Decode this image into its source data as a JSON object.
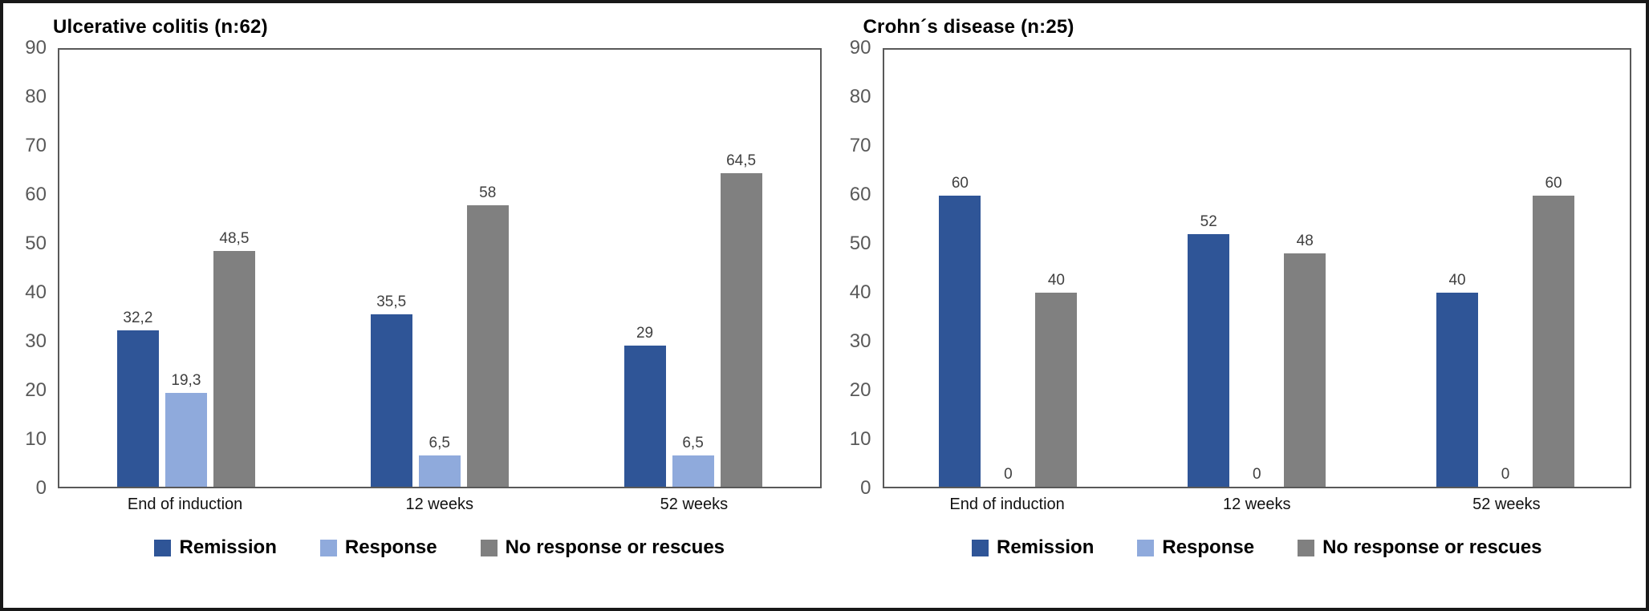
{
  "figure": {
    "kind": "grouped-bar-figure",
    "background": "#ffffff",
    "border_color": "#181818"
  },
  "colors": {
    "remission": "#2F5597",
    "response": "#8FAADC",
    "no_response_or_rescues": "#808080",
    "axis_text": "#595959",
    "value_label_text": "#404040",
    "plot_border": "#595959"
  },
  "chart_data": [
    {
      "type": "bar",
      "title": "Ulcerative colitis (n:62)",
      "categories": [
        "End of induction",
        "12 weeks",
        "52 weeks"
      ],
      "series": [
        {
          "name": "Remission",
          "color": "#2F5597",
          "values": [
            32.2,
            35.5,
            29
          ],
          "labels": [
            "32,2",
            "35,5",
            "29"
          ]
        },
        {
          "name": "Response",
          "color": "#8FAADC",
          "values": [
            19.3,
            6.5,
            6.5
          ],
          "labels": [
            "19,3",
            "6,5",
            "6,5"
          ]
        },
        {
          "name": "No response or rescues",
          "color": "#808080",
          "values": [
            48.5,
            58,
            64.5
          ],
          "labels": [
            "48,5",
            "58",
            "64,5"
          ]
        }
      ],
      "xlabel": "",
      "ylabel": "",
      "ylim": [
        0,
        90
      ],
      "yticks": [
        0,
        10,
        20,
        30,
        40,
        50,
        60,
        70,
        80,
        90
      ],
      "grid": false,
      "legend_position": "bottom",
      "value_labels_shown": true
    },
    {
      "type": "bar",
      "title": "Crohn´s disease (n:25)",
      "categories": [
        "End of induction",
        "12 weeks",
        "52 weeks"
      ],
      "series": [
        {
          "name": "Remission",
          "color": "#2F5597",
          "values": [
            60,
            52,
            40
          ],
          "labels": [
            "60",
            "52",
            "40"
          ]
        },
        {
          "name": "Response",
          "color": "#8FAADC",
          "values": [
            0,
            0,
            0
          ],
          "labels": [
            "0",
            "0",
            "0"
          ]
        },
        {
          "name": "No response or rescues",
          "color": "#808080",
          "values": [
            40,
            48,
            60
          ],
          "labels": [
            "40",
            "48",
            "60"
          ]
        }
      ],
      "xlabel": "",
      "ylabel": "",
      "ylim": [
        0,
        90
      ],
      "yticks": [
        0,
        10,
        20,
        30,
        40,
        50,
        60,
        70,
        80,
        90
      ],
      "grid": false,
      "legend_position": "bottom",
      "value_labels_shown": true
    }
  ]
}
